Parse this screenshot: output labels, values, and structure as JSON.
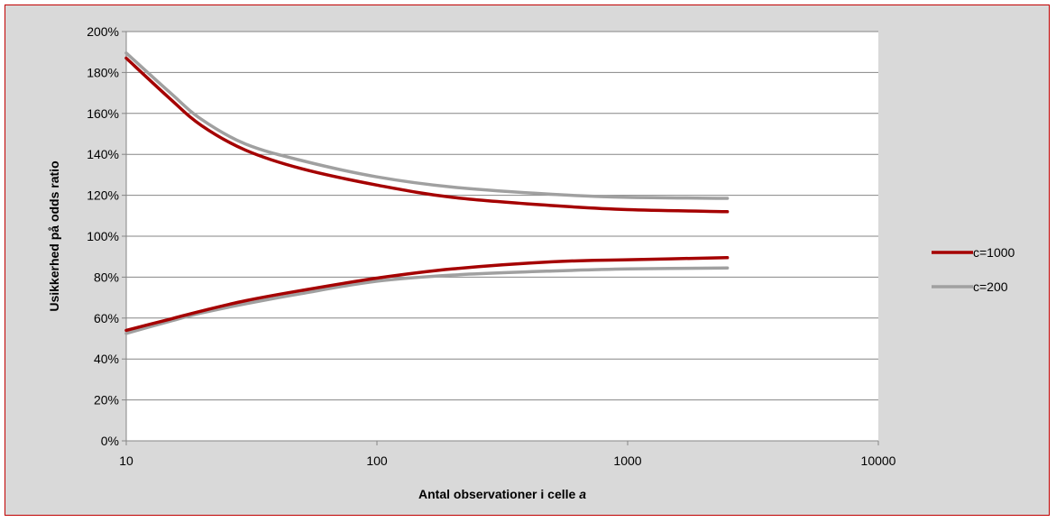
{
  "chart_data": {
    "type": "line",
    "title": "",
    "xlabel_text": "Antal observationer i celle ",
    "xlabel_var": "a",
    "ylabel": "Usikkerhed på odds ratio",
    "x_scale": "log",
    "xlim": [
      10,
      10000
    ],
    "ylim": [
      0,
      200
    ],
    "x_ticks": [
      "10",
      "100",
      "1000",
      "10000"
    ],
    "y_ticks": [
      "0%",
      "20%",
      "40%",
      "60%",
      "80%",
      "100%",
      "120%",
      "140%",
      "160%",
      "180%",
      "200%"
    ],
    "grid": "horizontal",
    "legend_position": "right",
    "series": [
      {
        "name": "c=1000",
        "color": "#a50000",
        "upper": {
          "x": [
            10,
            15,
            20,
            30,
            50,
            100,
            200,
            500,
            1000,
            2500
          ],
          "y": [
            187,
            167,
            154,
            142,
            133,
            125,
            119,
            115,
            113,
            112
          ]
        },
        "lower": {
          "x": [
            10,
            15,
            20,
            30,
            50,
            100,
            200,
            500,
            1000,
            2500
          ],
          "y": [
            54,
            59.5,
            63.5,
            68.5,
            73.5,
            79.5,
            84,
            87.5,
            88.5,
            89.5
          ]
        }
      },
      {
        "name": "c=200",
        "color": "#a0a0a0",
        "upper": {
          "x": [
            10,
            15,
            20,
            30,
            50,
            100,
            200,
            500,
            1000,
            2500
          ],
          "y": [
            189.5,
            170,
            157,
            145,
            137,
            129,
            124,
            120.5,
            119,
            118.5
          ]
        },
        "lower": {
          "x": [
            10,
            15,
            20,
            30,
            50,
            100,
            200,
            500,
            1000,
            2500
          ],
          "y": [
            52.5,
            58.5,
            62.5,
            67,
            72,
            78,
            81,
            83,
            84,
            84.5
          ]
        }
      }
    ]
  }
}
